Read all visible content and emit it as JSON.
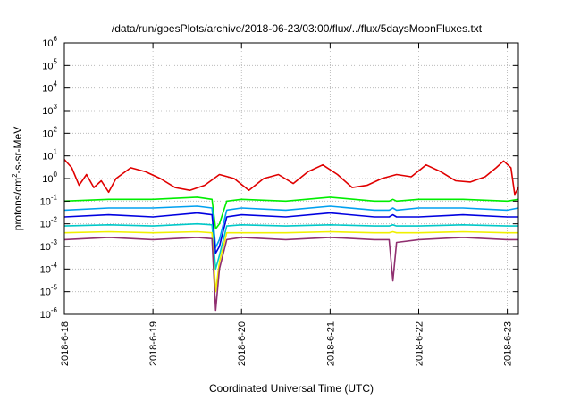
{
  "chart_data": {
    "type": "line",
    "title": "/data/run/goesPlots/archive/2018-06-23/03:00/flux/../flux/5daysMoonFluxes.txt",
    "xlabel": "Coordinated Universal Time (UTC)",
    "ylabel": "protons/cm²-s-sr-MeV",
    "ylabel_parts": [
      "protons/cm",
      "2",
      "-s-sr-MeV"
    ],
    "yscale": "log",
    "ylim": [
      1e-06,
      1000000.0
    ],
    "yticks": [
      {
        "value": 1e-06,
        "base": "10",
        "exp": "-6"
      },
      {
        "value": 1e-05,
        "base": "10",
        "exp": "-5"
      },
      {
        "value": 0.0001,
        "base": "10",
        "exp": "-4"
      },
      {
        "value": 0.001,
        "base": "10",
        "exp": "-3"
      },
      {
        "value": 0.01,
        "base": "10",
        "exp": "-2"
      },
      {
        "value": 0.1,
        "base": "10",
        "exp": "-1"
      },
      {
        "value": 1,
        "base": "10",
        "exp": "0"
      },
      {
        "value": 10.0,
        "base": "10",
        "exp": "1"
      },
      {
        "value": 100.0,
        "base": "10",
        "exp": "2"
      },
      {
        "value": 1000.0,
        "base": "10",
        "exp": "3"
      },
      {
        "value": 10000.0,
        "base": "10",
        "exp": "4"
      },
      {
        "value": 100000.0,
        "base": "10",
        "exp": "5"
      },
      {
        "value": 1000000.0,
        "base": "10",
        "exp": "6"
      }
    ],
    "xlim": [
      "2018-06-18",
      "2018-06-23 03:00"
    ],
    "xticks": [
      {
        "value": "2018-06-18",
        "label": "2018-6-18"
      },
      {
        "value": "2018-06-19",
        "label": "2018-6-19"
      },
      {
        "value": "2018-06-20",
        "label": "2018-6-20"
      },
      {
        "value": "2018-06-21",
        "label": "2018-6-21"
      },
      {
        "value": "2018-06-22",
        "label": "2018-6-22"
      },
      {
        "value": "2018-06-23",
        "label": "2018-6-23"
      }
    ],
    "grid": true,
    "series": [
      {
        "color": "#e00000",
        "x": [
          "2018-06-18 00:00",
          "2018-06-18 02:00",
          "2018-06-18 04:00",
          "2018-06-18 06:00",
          "2018-06-18 08:00",
          "2018-06-18 10:00",
          "2018-06-18 12:00",
          "2018-06-18 14:00",
          "2018-06-18 18:00",
          "2018-06-18 22:00",
          "2018-06-19 02:00",
          "2018-06-19 06:00",
          "2018-06-19 10:00",
          "2018-06-19 14:00",
          "2018-06-19 18:00",
          "2018-06-19 22:00",
          "2018-06-20 02:00",
          "2018-06-20 06:00",
          "2018-06-20 10:00",
          "2018-06-20 14:00",
          "2018-06-20 18:00",
          "2018-06-20 22:00",
          "2018-06-21 02:00",
          "2018-06-21 06:00",
          "2018-06-21 10:00",
          "2018-06-21 14:00",
          "2018-06-21 18:00",
          "2018-06-21 22:00",
          "2018-06-22 02:00",
          "2018-06-22 06:00",
          "2018-06-22 10:00",
          "2018-06-22 14:00",
          "2018-06-22 18:00",
          "2018-06-22 21:00",
          "2018-06-22 23:00",
          "2018-06-23 01:00",
          "2018-06-23 02:00",
          "2018-06-23 03:00"
        ],
        "y": [
          7,
          3,
          0.5,
          1.5,
          0.4,
          0.8,
          0.25,
          1,
          3,
          2,
          1,
          0.4,
          0.3,
          0.5,
          1.5,
          1,
          0.3,
          1,
          1.5,
          0.6,
          2,
          4,
          1.5,
          0.4,
          0.5,
          1,
          1.5,
          1.2,
          4,
          2,
          0.8,
          0.7,
          1.2,
          3,
          6,
          3,
          0.2,
          0.4
        ]
      },
      {
        "color": "#00ee00",
        "x": [
          "2018-06-18 00:00",
          "2018-06-18 12:00",
          "2018-06-19 00:00",
          "2018-06-19 12:00",
          "2018-06-19 16:00",
          "2018-06-19 17:00",
          "2018-06-19 18:00",
          "2018-06-19 20:00",
          "2018-06-20 00:00",
          "2018-06-20 12:00",
          "2018-06-21 00:00",
          "2018-06-21 12:00",
          "2018-06-21 16:00",
          "2018-06-21 17:00",
          "2018-06-21 18:00",
          "2018-06-22 00:00",
          "2018-06-22 12:00",
          "2018-06-23 00:00",
          "2018-06-23 03:00"
        ],
        "y": [
          0.1,
          0.12,
          0.12,
          0.15,
          0.12,
          0.006,
          0.01,
          0.1,
          0.12,
          0.1,
          0.15,
          0.1,
          0.1,
          0.12,
          0.1,
          0.12,
          0.12,
          0.1,
          0.12
        ]
      },
      {
        "color": "#00a0f0",
        "x": [
          "2018-06-18 00:00",
          "2018-06-18 12:00",
          "2018-06-19 00:00",
          "2018-06-19 12:00",
          "2018-06-19 16:00",
          "2018-06-19 17:00",
          "2018-06-19 18:00",
          "2018-06-19 20:00",
          "2018-06-20 00:00",
          "2018-06-20 12:00",
          "2018-06-21 00:00",
          "2018-06-21 12:00",
          "2018-06-21 16:00",
          "2018-06-21 17:00",
          "2018-06-21 18:00",
          "2018-06-22 00:00",
          "2018-06-22 12:00",
          "2018-06-23 00:00",
          "2018-06-23 03:00"
        ],
        "y": [
          0.04,
          0.05,
          0.05,
          0.06,
          0.05,
          0.0009,
          0.002,
          0.04,
          0.05,
          0.04,
          0.06,
          0.04,
          0.04,
          0.05,
          0.04,
          0.05,
          0.05,
          0.04,
          0.05
        ]
      },
      {
        "color": "#0000e0",
        "x": [
          "2018-06-18 00:00",
          "2018-06-18 12:00",
          "2018-06-19 00:00",
          "2018-06-19 12:00",
          "2018-06-19 16:00",
          "2018-06-19 17:00",
          "2018-06-19 18:00",
          "2018-06-19 20:00",
          "2018-06-20 00:00",
          "2018-06-20 12:00",
          "2018-06-21 00:00",
          "2018-06-21 12:00",
          "2018-06-21 16:00",
          "2018-06-21 17:00",
          "2018-06-21 18:00",
          "2018-06-22 00:00",
          "2018-06-22 12:00",
          "2018-06-23 00:00",
          "2018-06-23 03:00"
        ],
        "y": [
          0.02,
          0.025,
          0.02,
          0.03,
          0.025,
          0.0005,
          0.001,
          0.02,
          0.025,
          0.02,
          0.03,
          0.02,
          0.02,
          0.025,
          0.02,
          0.02,
          0.025,
          0.02,
          0.02
        ]
      },
      {
        "color": "#00c8c8",
        "x": [
          "2018-06-18 00:00",
          "2018-06-18 12:00",
          "2018-06-19 00:00",
          "2018-06-19 12:00",
          "2018-06-19 16:00",
          "2018-06-19 17:00",
          "2018-06-19 18:00",
          "2018-06-19 20:00",
          "2018-06-20 00:00",
          "2018-06-20 12:00",
          "2018-06-21 00:00",
          "2018-06-21 12:00",
          "2018-06-21 16:00",
          "2018-06-21 17:00",
          "2018-06-21 18:00",
          "2018-06-22 00:00",
          "2018-06-22 12:00",
          "2018-06-23 00:00",
          "2018-06-23 03:00"
        ],
        "y": [
          0.008,
          0.009,
          0.008,
          0.01,
          0.009,
          0.0001,
          0.0004,
          0.008,
          0.009,
          0.008,
          0.009,
          0.008,
          0.008,
          0.009,
          0.008,
          0.008,
          0.009,
          0.008,
          0.008
        ]
      },
      {
        "color": "#f0f000",
        "x": [
          "2018-06-18 00:00",
          "2018-06-18 12:00",
          "2018-06-19 00:00",
          "2018-06-19 12:00",
          "2018-06-19 16:00",
          "2018-06-19 17:00",
          "2018-06-19 18:00",
          "2018-06-19 20:00",
          "2018-06-20 00:00",
          "2018-06-20 12:00",
          "2018-06-21 00:00",
          "2018-06-21 12:00",
          "2018-06-21 16:00",
          "2018-06-21 17:00",
          "2018-06-21 18:00",
          "2018-06-22 00:00",
          "2018-06-22 12:00",
          "2018-06-23 00:00",
          "2018-06-23 03:00"
        ],
        "y": [
          0.004,
          0.0045,
          0.004,
          0.0045,
          0.004,
          1e-05,
          0.0002,
          0.004,
          0.004,
          0.004,
          0.0045,
          0.004,
          0.004,
          0.0045,
          0.004,
          0.004,
          0.0045,
          0.004,
          0.004
        ]
      },
      {
        "color": "#903070",
        "x": [
          "2018-06-18 00:00",
          "2018-06-18 12:00",
          "2018-06-19 00:00",
          "2018-06-19 12:00",
          "2018-06-19 16:00",
          "2018-06-19 17:00",
          "2018-06-19 18:00",
          "2018-06-19 20:00",
          "2018-06-20 00:00",
          "2018-06-20 12:00",
          "2018-06-21 00:00",
          "2018-06-21 12:00",
          "2018-06-21 16:00",
          "2018-06-21 17:00",
          "2018-06-21 18:00",
          "2018-06-22 00:00",
          "2018-06-22 12:00",
          "2018-06-23 00:00",
          "2018-06-23 03:00"
        ],
        "y": [
          0.002,
          0.0025,
          0.002,
          0.0025,
          0.0022,
          1.5e-06,
          0.0001,
          0.002,
          0.0025,
          0.002,
          0.0025,
          0.002,
          0.002,
          3e-05,
          0.0015,
          0.002,
          0.0025,
          0.002,
          0.002
        ]
      }
    ]
  }
}
